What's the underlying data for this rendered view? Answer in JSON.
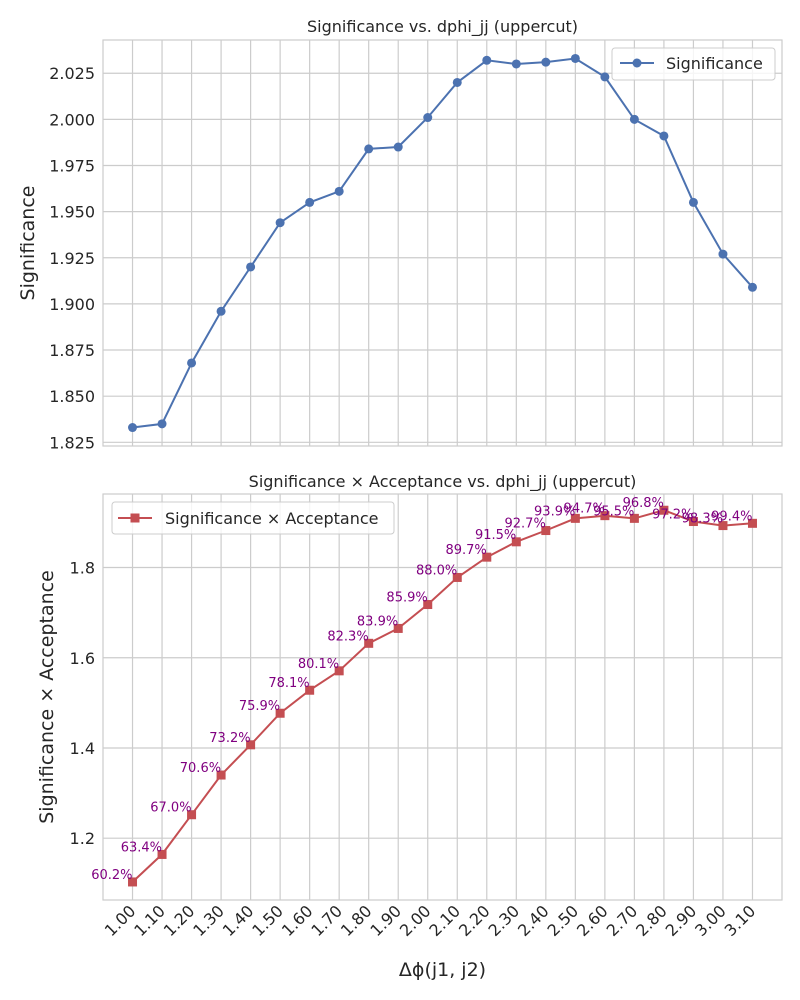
{
  "chart_data": [
    {
      "type": "line",
      "title": "Significance vs. dphi_jj (uppercut)",
      "xlabel": "",
      "ylabel": "Significance",
      "ylim": [
        1.823,
        2.043
      ],
      "yticks": [
        1.825,
        1.85,
        1.875,
        1.9,
        1.925,
        1.95,
        1.975,
        2.0,
        2.025
      ],
      "ytick_labels": [
        "1.825",
        "1.850",
        "1.875",
        "1.900",
        "1.925",
        "1.950",
        "1.975",
        "2.000",
        "2.025"
      ],
      "grid": true,
      "legend_position": "upper right",
      "marker": "circle",
      "color": "#4c72b0",
      "x": [
        1.0,
        1.1,
        1.2,
        1.3,
        1.4,
        1.5,
        1.6,
        1.7,
        1.8,
        1.9,
        2.0,
        2.1,
        2.2,
        2.3,
        2.4,
        2.5,
        2.6,
        2.7,
        2.8,
        2.9,
        3.0,
        3.1
      ],
      "series": [
        {
          "name": "Significance",
          "values": [
            1.833,
            1.835,
            1.868,
            1.896,
            1.92,
            1.944,
            1.955,
            1.961,
            1.984,
            1.985,
            2.001,
            2.02,
            2.032,
            2.03,
            2.031,
            2.033,
            2.023,
            2.0,
            1.991,
            1.955,
            1.927,
            1.909
          ]
        }
      ]
    },
    {
      "type": "line",
      "title": "Significance × Acceptance vs. dphi_jj (uppercut)",
      "xlabel": "Δϕ(j1, j2)",
      "ylabel": "Significance × Acceptance",
      "ylim": [
        1.063,
        1.963
      ],
      "yticks": [
        1.2,
        1.4,
        1.6,
        1.8
      ],
      "ytick_labels": [
        "1.2",
        "1.4",
        "1.6",
        "1.8"
      ],
      "grid": true,
      "legend_position": "upper left",
      "marker": "square",
      "color": "#c44e52",
      "annotation_color": "#800080",
      "x": [
        1.0,
        1.1,
        1.2,
        1.3,
        1.4,
        1.5,
        1.6,
        1.7,
        1.8,
        1.9,
        2.0,
        2.1,
        2.2,
        2.3,
        2.4,
        2.5,
        2.6,
        2.7,
        2.8,
        2.9,
        3.0,
        3.1
      ],
      "x_tick_labels": [
        "1.00",
        "1.10",
        "1.20",
        "1.30",
        "1.40",
        "1.50",
        "1.60",
        "1.70",
        "1.80",
        "1.90",
        "2.00",
        "2.10",
        "2.20",
        "2.30",
        "2.40",
        "2.50",
        "2.60",
        "2.70",
        "2.80",
        "2.90",
        "3.00",
        "3.10"
      ],
      "series": [
        {
          "name": "Significance × Acceptance",
          "values": [
            1.103,
            1.164,
            1.252,
            1.34,
            1.407,
            1.477,
            1.528,
            1.571,
            1.632,
            1.665,
            1.718,
            1.778,
            1.823,
            1.857,
            1.882,
            1.909,
            1.915,
            1.909,
            1.927,
            1.902,
            1.893,
            1.898
          ],
          "acceptance_labels": [
            "60.2%",
            "63.4%",
            "67.0%",
            "70.6%",
            "73.2%",
            "75.9%",
            "78.1%",
            "80.1%",
            "82.3%",
            "83.9%",
            "85.9%",
            "88.0%",
            "89.7%",
            "91.5%",
            "92.7%",
            "93.9%",
            "94.7%",
            "95.5%",
            "96.8%",
            "97.2%",
            "98.3%",
            "99.4%"
          ]
        }
      ]
    }
  ]
}
